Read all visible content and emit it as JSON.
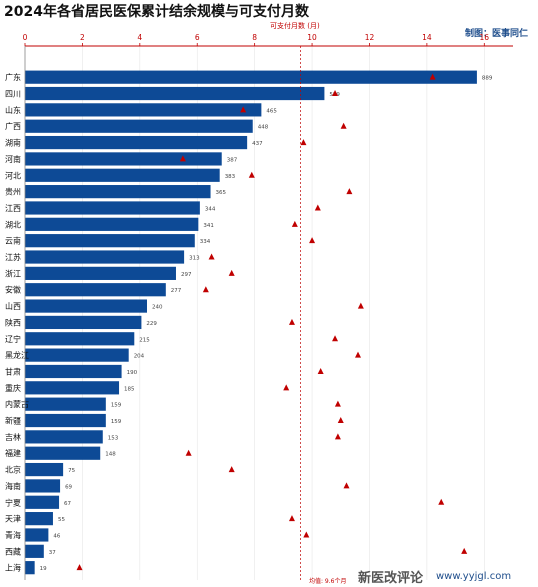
{
  "page": {
    "title": "2024年各省居民医保累计结余规模与可支付月数",
    "credit": "制图：医事同仁",
    "watermark": "新医改评论",
    "watermark_url": "www.yyjgl.com",
    "avg_label": "均值: 9.6个月"
  },
  "colors": {
    "bar": "#0d4a96",
    "marker": "#c00000",
    "axis": "#c00000"
  },
  "chart_data": {
    "type": "bar",
    "orientation": "horizontal",
    "title": "2024年各省居民医保累计结余规模与可支付月数",
    "x2label": "可支付月数 (月)",
    "x2lim": [
      0,
      17
    ],
    "x2ticks": [
      0,
      2,
      4,
      6,
      8,
      10,
      12,
      14,
      16
    ],
    "average_months": 9.6,
    "categories": [
      "广东",
      "四川",
      "山东",
      "广西",
      "湖南",
      "河南",
      "河北",
      "贵州",
      "江西",
      "湖北",
      "云南",
      "江苏",
      "浙江",
      "安徽",
      "山西",
      "陕西",
      "辽宁",
      "黑龙江",
      "甘肃",
      "重庆",
      "内蒙古",
      "新疆",
      "吉林",
      "福建",
      "北京",
      "海南",
      "宁夏",
      "天津",
      "青海",
      "西藏",
      "上海"
    ],
    "series": [
      {
        "values": [
          889,
          589,
          465,
          448,
          437,
          387,
          383,
          365,
          344,
          341,
          334,
          313,
          297,
          277,
          240,
          229,
          215,
          204,
          190,
          185,
          159,
          159,
          153,
          148,
          75,
          69,
          67,
          55,
          46,
          37,
          19
        ]
      },
      {
        "values": [
          14.2,
          10.8,
          7.6,
          11.1,
          9.7,
          5.5,
          7.9,
          11.3,
          10.2,
          9.4,
          10.0,
          6.5,
          7.2,
          6.3,
          11.7,
          9.3,
          10.8,
          11.6,
          10.3,
          9.1,
          10.9,
          11.0,
          10.9,
          5.7,
          7.2,
          11.2,
          14.5,
          9.3,
          9.8,
          15.3,
          1.9
        ]
      }
    ]
  }
}
